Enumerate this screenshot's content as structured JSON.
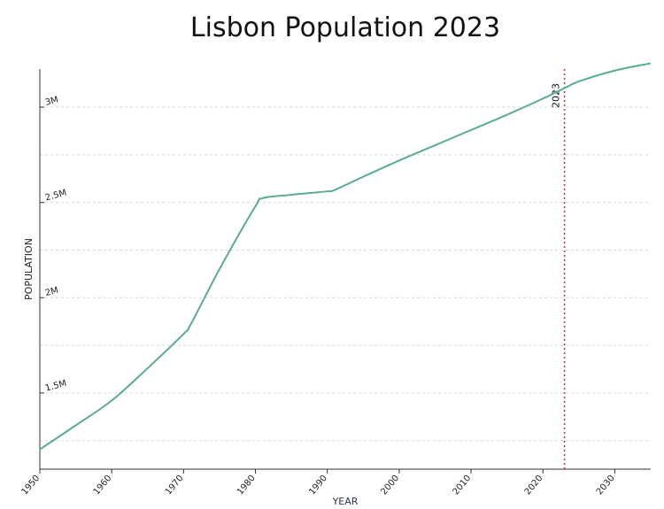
{
  "chart_data": {
    "type": "line",
    "title": "Lisbon Population 2023",
    "xlabel": "YEAR",
    "ylabel": "POPULATION",
    "xlim": [
      1950,
      2035
    ],
    "ylim": [
      1100000,
      3200000
    ],
    "x_ticks": [
      1950,
      1960,
      1970,
      1980,
      1990,
      2000,
      2010,
      2020,
      2030
    ],
    "y_ticks": [
      1500000,
      2000000,
      2500000,
      3000000
    ],
    "y_tick_labels": [
      "1.5M",
      "2M",
      "2.5M",
      "3M"
    ],
    "grid": true,
    "series": [
      {
        "name": "Population",
        "color": "#5aac91",
        "x": [
          1950,
          1955,
          1960,
          1965,
          1970,
          1971,
          1975,
          1980,
          1981,
          1985,
          1990,
          1991,
          1995,
          2000,
          2005,
          2010,
          2015,
          2020,
          2023,
          2025,
          2030,
          2035
        ],
        "y": [
          1204000,
          1330000,
          1460000,
          1630000,
          1810000,
          1860000,
          2150000,
          2480000,
          2522000,
          2540000,
          2558000,
          2565000,
          2635000,
          2720000,
          2800000,
          2880000,
          2960000,
          3045000,
          3100000,
          3135000,
          3192000,
          3230000
        ]
      }
    ],
    "marker": {
      "x": 2023,
      "label": "2023",
      "color": "#e03131"
    }
  }
}
